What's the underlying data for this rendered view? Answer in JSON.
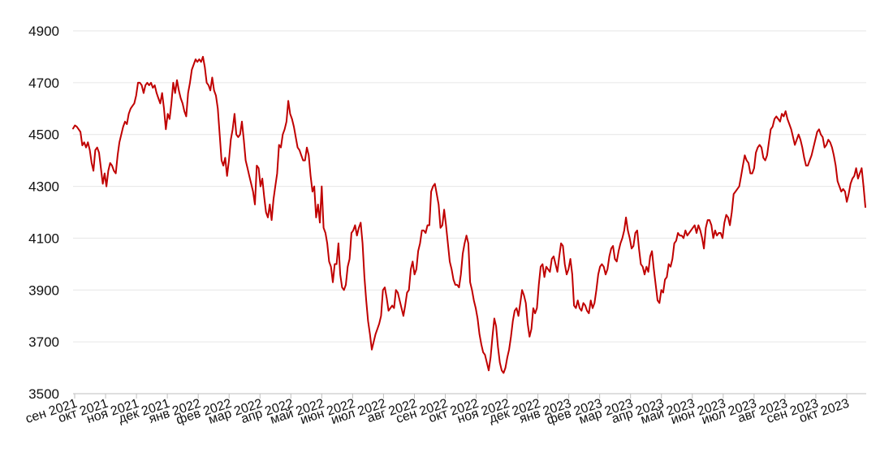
{
  "chart_data": {
    "type": "line",
    "title": "",
    "xlabel": "",
    "ylabel": "",
    "ylim": [
      3500,
      4900
    ],
    "yticks": [
      3500,
      3700,
      3900,
      4100,
      4300,
      4500,
      4700,
      4900
    ],
    "grid": true,
    "legend": "none",
    "color": "#c00000",
    "xticks": [
      "сен 2021",
      "окт 2021",
      "ноя 2021",
      "дек 2021",
      "янв 2022",
      "фев 2022",
      "мар 2022",
      "апр 2022",
      "май 2022",
      "июн 2022",
      "июл 2022",
      "авг 2022",
      "сен 2022",
      "окт 2022",
      "ноя 2022",
      "дек 2022",
      "янв 2023",
      "фев 2023",
      "мар 2023",
      "апр 2023",
      "май 2023",
      "июн 2023",
      "июл 2023",
      "авг 2023",
      "сен 2023",
      "окт 2023"
    ],
    "series": [
      {
        "values": [
          4523,
          4535,
          4530,
          4520,
          4510,
          4458,
          4470,
          4450,
          4470,
          4440,
          4390,
          4360,
          4440,
          4450,
          4430,
          4370,
          4310,
          4350,
          4300,
          4360,
          4390,
          4380,
          4360,
          4350,
          4420,
          4470,
          4500,
          4530,
          4550,
          4540,
          4580,
          4600,
          4610,
          4620,
          4650,
          4700,
          4700,
          4690,
          4660,
          4690,
          4700,
          4690,
          4700,
          4680,
          4690,
          4660,
          4640,
          4620,
          4660,
          4600,
          4520,
          4580,
          4560,
          4620,
          4700,
          4660,
          4710,
          4670,
          4640,
          4620,
          4590,
          4570,
          4660,
          4700,
          4750,
          4770,
          4790,
          4780,
          4790,
          4780,
          4800,
          4760,
          4700,
          4690,
          4670,
          4720,
          4670,
          4650,
          4600,
          4500,
          4400,
          4380,
          4410,
          4340,
          4400,
          4480,
          4520,
          4580,
          4500,
          4490,
          4500,
          4550,
          4480,
          4400,
          4370,
          4340,
          4310,
          4280,
          4230,
          4380,
          4370,
          4300,
          4330,
          4260,
          4200,
          4180,
          4230,
          4170,
          4250,
          4300,
          4350,
          4460,
          4450,
          4500,
          4520,
          4550,
          4630,
          4580,
          4560,
          4530,
          4490,
          4450,
          4440,
          4420,
          4400,
          4400,
          4450,
          4420,
          4340,
          4280,
          4300,
          4180,
          4230,
          4160,
          4300,
          4140,
          4120,
          4080,
          4010,
          3990,
          3930,
          4000,
          4000,
          4080,
          3960,
          3910,
          3900,
          3920,
          3990,
          4020,
          4120,
          4130,
          4150,
          4110,
          4140,
          4160,
          4080,
          3950,
          3860,
          3780,
          3730,
          3670,
          3700,
          3730,
          3750,
          3770,
          3800,
          3900,
          3910,
          3870,
          3820,
          3830,
          3840,
          3830,
          3900,
          3890,
          3860,
          3830,
          3800,
          3840,
          3890,
          3900,
          3980,
          4010,
          3960,
          3980,
          4050,
          4080,
          4130,
          4130,
          4120,
          4150,
          4150,
          4280,
          4300,
          4310,
          4270,
          4230,
          4140,
          4150,
          4210,
          4150,
          4080,
          4010,
          3980,
          3940,
          3920,
          3920,
          3910,
          3960,
          4040,
          4080,
          4110,
          4080,
          3930,
          3900,
          3860,
          3830,
          3790,
          3730,
          3690,
          3660,
          3650,
          3620,
          3590,
          3640,
          3720,
          3790,
          3760,
          3680,
          3620,
          3590,
          3580,
          3600,
          3640,
          3670,
          3720,
          3780,
          3820,
          3830,
          3800,
          3850,
          3900,
          3880,
          3850,
          3770,
          3720,
          3750,
          3830,
          3810,
          3830,
          3920,
          3990,
          4000,
          3950,
          3990,
          3980,
          3970,
          4020,
          4030,
          4000,
          3970,
          4030,
          4080,
          4070,
          4000,
          3960,
          3980,
          4020,
          3960,
          3840,
          3830,
          3860,
          3830,
          3820,
          3850,
          3840,
          3820,
          3810,
          3860,
          3830,
          3850,
          3900,
          3960,
          3990,
          4000,
          3990,
          3960,
          3980,
          4030,
          4060,
          4070,
          4020,
          4010,
          4050,
          4080,
          4100,
          4130,
          4180,
          4130,
          4100,
          4060,
          4070,
          4120,
          4130,
          4060,
          4000,
          3990,
          3960,
          3990,
          3970,
          4030,
          4050,
          3980,
          3920,
          3860,
          3850,
          3900,
          3890,
          3940,
          3950,
          4000,
          3990,
          4020,
          4080,
          4090,
          4120,
          4110,
          4110,
          4100,
          4130,
          4110,
          4120,
          4130,
          4140,
          4150,
          4120,
          4150,
          4130,
          4100,
          4060,
          4140,
          4170,
          4170,
          4150,
          4100,
          4130,
          4110,
          4120,
          4120,
          4100,
          4160,
          4190,
          4180,
          4150,
          4200,
          4270,
          4280,
          4290,
          4300,
          4340,
          4380,
          4420,
          4400,
          4390,
          4350,
          4350,
          4370,
          4430,
          4450,
          4460,
          4450,
          4410,
          4400,
          4420,
          4470,
          4520,
          4530,
          4560,
          4570,
          4560,
          4550,
          4580,
          4570,
          4590,
          4560,
          4540,
          4520,
          4490,
          4460,
          4480,
          4500,
          4480,
          4450,
          4410,
          4380,
          4380,
          4400,
          4420,
          4450,
          4480,
          4510,
          4520,
          4500,
          4490,
          4450,
          4460,
          4480,
          4470,
          4450,
          4420,
          4380,
          4320,
          4300,
          4280,
          4290,
          4280,
          4240,
          4270,
          4310,
          4330,
          4340,
          4370,
          4330,
          4350,
          4370,
          4300,
          4220
        ]
      }
    ]
  }
}
